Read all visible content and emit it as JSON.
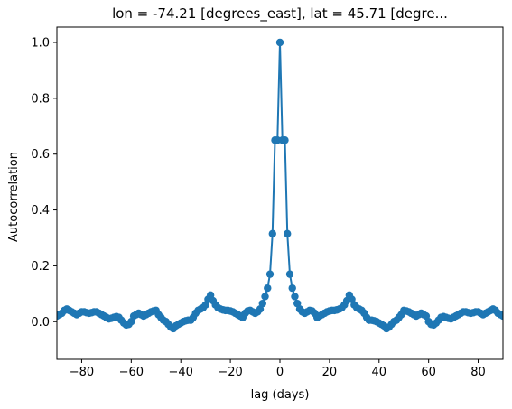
{
  "chart_data": {
    "type": "line",
    "title": "lon = -74.21 [degrees_east], lat = 45.71 [degre...",
    "xlabel": "lag (days)",
    "ylabel": "Autocorrelation",
    "xlim": [
      -90,
      90
    ],
    "ylim": [
      -0.135,
      1.055
    ],
    "xticks": [
      -80,
      -60,
      -40,
      -20,
      0,
      20,
      40,
      60,
      80
    ],
    "xtick_labels": [
      "−80",
      "−60",
      "−40",
      "−20",
      "0",
      "20",
      "40",
      "60",
      "80"
    ],
    "yticks": [
      0.0,
      0.2,
      0.4,
      0.6,
      0.8,
      1.0
    ],
    "ytick_labels": [
      "0.0",
      "0.2",
      "0.4",
      "0.6",
      "0.8",
      "1.0"
    ],
    "grid": false,
    "legend": null,
    "markers": true,
    "color": "#1f77b4",
    "lag_max": 90,
    "half_values": [
      1.0,
      0.65,
      0.65,
      0.315,
      0.17,
      0.12,
      0.09,
      0.065,
      0.045,
      0.035,
      0.03,
      0.035,
      0.04,
      0.038,
      0.03,
      0.015,
      0.02,
      0.025,
      0.03,
      0.035,
      0.038,
      0.04,
      0.04,
      0.042,
      0.045,
      0.05,
      0.06,
      0.075,
      0.095,
      0.08,
      0.06,
      0.05,
      0.045,
      0.04,
      0.03,
      0.015,
      0.005,
      0.005,
      0.003,
      0.0,
      -0.005,
      -0.01,
      -0.015,
      -0.025,
      -0.02,
      -0.01,
      0.0,
      0.005,
      0.015,
      0.025,
      0.04,
      0.038,
      0.035,
      0.03,
      0.025,
      0.02,
      0.025,
      0.03,
      0.025,
      0.02,
      0.0,
      -0.01,
      -0.012,
      -0.005,
      0.005,
      0.015,
      0.018,
      0.015,
      0.012,
      0.01,
      0.015,
      0.02,
      0.025,
      0.03,
      0.035,
      0.035,
      0.032,
      0.03,
      0.032,
      0.035,
      0.035,
      0.03,
      0.025,
      0.03,
      0.035,
      0.04,
      0.045,
      0.04,
      0.03,
      0.025,
      0.02
    ]
  }
}
